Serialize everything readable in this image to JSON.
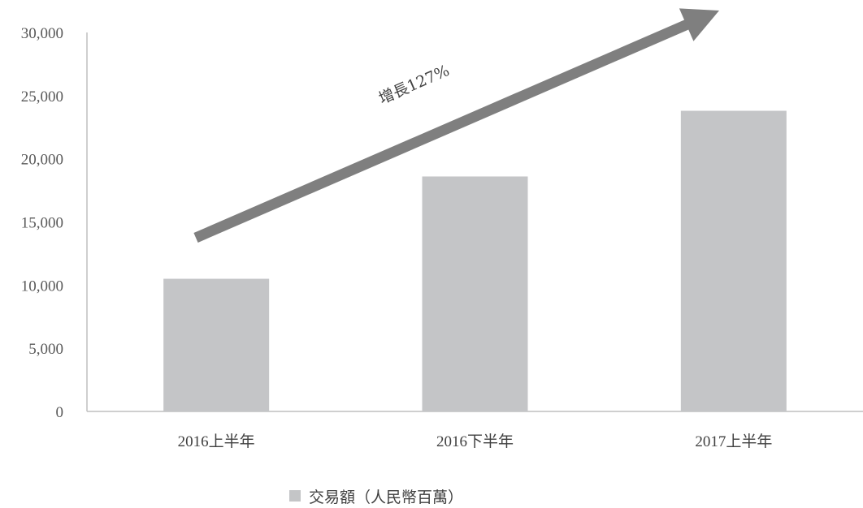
{
  "chart_data": {
    "type": "bar",
    "categories": [
      "2016上半年",
      "2016下半年",
      "2017上半年"
    ],
    "series": [
      {
        "name": "交易額（人民幣百萬）",
        "values": [
          10500,
          18600,
          23800
        ],
        "color": "#c4c5c7"
      }
    ],
    "ylim": [
      0,
      30000
    ],
    "yticks": [
      "0",
      "5,000",
      "10,000",
      "15,000",
      "20,000",
      "25,000",
      "30,000"
    ],
    "ytick_values": [
      0,
      5000,
      10000,
      15000,
      20000,
      25000,
      30000
    ],
    "grid": false,
    "legend": "bottom-center",
    "annotation": {
      "text": "增長127%",
      "arrow_color": "#7f7f7f"
    },
    "axis_color": "#bfbfbf"
  }
}
